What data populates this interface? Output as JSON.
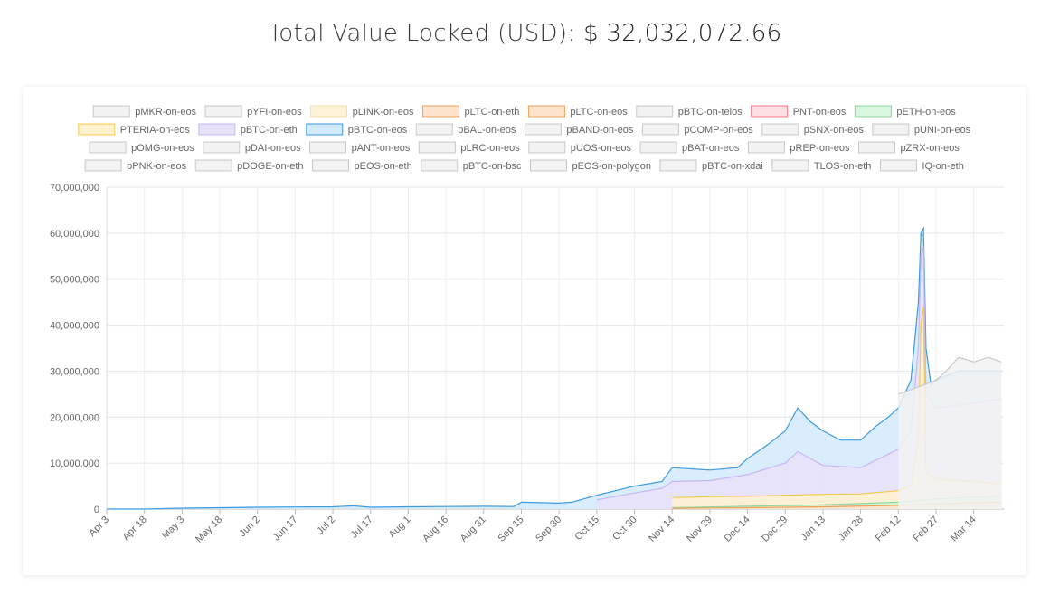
{
  "header": {
    "title_prefix": "Total Value Locked (USD):",
    "total_value": "$ 32,032,072.66"
  },
  "chart_data": {
    "type": "area",
    "stacked": true,
    "grid": true,
    "legend_position": "top",
    "ylim": [
      0,
      70000000
    ],
    "yticks": [
      "0",
      "10,000,000",
      "20,000,000",
      "30,000,000",
      "40,000,000",
      "50,000,000",
      "60,000,000",
      "70,000,000"
    ],
    "xticks": [
      "Apr 3",
      "Apr 18",
      "May 3",
      "May 18",
      "Jun 2",
      "Jun 17",
      "Jul 2",
      "Jul 17",
      "Aug 1",
      "Aug 16",
      "Aug 31",
      "Sep 15",
      "Sep 30",
      "Oct 15",
      "Oct 30",
      "Nov 14",
      "Nov 29",
      "Dec 14",
      "Dec 29",
      "Jan 13",
      "Jan 28",
      "Feb 12",
      "Feb 27",
      "Mar 14"
    ],
    "legend": [
      {
        "name": "pMKR-on-eos",
        "fill": "#f2f2f2",
        "stroke": "#c8c8c8"
      },
      {
        "name": "pYFI-on-eos",
        "fill": "#f2f2f2",
        "stroke": "#c8c8c8"
      },
      {
        "name": "pLINK-on-eos",
        "fill": "#fdf3d8",
        "stroke": "#f2dfae"
      },
      {
        "name": "pLTC-on-eth",
        "fill": "#fde3cc",
        "stroke": "#f0a05a"
      },
      {
        "name": "pLTC-on-eos",
        "fill": "#fde3cc",
        "stroke": "#f0a05a"
      },
      {
        "name": "pBTC-on-telos",
        "fill": "#f2f2f2",
        "stroke": "#c8c8c8"
      },
      {
        "name": "PNT-on-eos",
        "fill": "#fde0e3",
        "stroke": "#f07a85"
      },
      {
        "name": "pETH-on-eos",
        "fill": "#d8f5dd",
        "stroke": "#8fd89d"
      },
      {
        "name": "PTERIA-on-eos",
        "fill": "#fff3cf",
        "stroke": "#f5c84c"
      },
      {
        "name": "pBTC-on-eth",
        "fill": "#e7e0f9",
        "stroke": "#c7b6f0"
      },
      {
        "name": "pBTC-on-eos",
        "fill": "#d2eafc",
        "stroke": "#3b9ae1"
      },
      {
        "name": "pBAL-on-eos",
        "fill": "#f2f2f2",
        "stroke": "#c8c8c8"
      },
      {
        "name": "pBAND-on-eos",
        "fill": "#f2f2f2",
        "stroke": "#c8c8c8"
      },
      {
        "name": "pCOMP-on-eos",
        "fill": "#f2f2f2",
        "stroke": "#c8c8c8"
      },
      {
        "name": "pSNX-on-eos",
        "fill": "#f2f2f2",
        "stroke": "#c8c8c8"
      },
      {
        "name": "pUNI-on-eos",
        "fill": "#f2f2f2",
        "stroke": "#c8c8c8"
      },
      {
        "name": "pOMG-on-eos",
        "fill": "#f2f2f2",
        "stroke": "#c8c8c8"
      },
      {
        "name": "pDAI-on-eos",
        "fill": "#f2f2f2",
        "stroke": "#c8c8c8"
      },
      {
        "name": "pANT-on-eos",
        "fill": "#f2f2f2",
        "stroke": "#c8c8c8"
      },
      {
        "name": "pLRC-on-eos",
        "fill": "#f2f2f2",
        "stroke": "#c8c8c8"
      },
      {
        "name": "pUOS-on-eos",
        "fill": "#f2f2f2",
        "stroke": "#c8c8c8"
      },
      {
        "name": "pBAT-on-eos",
        "fill": "#f2f2f2",
        "stroke": "#c8c8c8"
      },
      {
        "name": "pREP-on-eos",
        "fill": "#f2f2f2",
        "stroke": "#c8c8c8"
      },
      {
        "name": "pZRX-on-eos",
        "fill": "#f2f2f2",
        "stroke": "#c8c8c8"
      },
      {
        "name": "pPNK-on-eos",
        "fill": "#f2f2f2",
        "stroke": "#c8c8c8"
      },
      {
        "name": "pDOGE-on-eth",
        "fill": "#f2f2f2",
        "stroke": "#c8c8c8"
      },
      {
        "name": "pEOS-on-eth",
        "fill": "#f2f2f2",
        "stroke": "#c8c8c8"
      },
      {
        "name": "pBTC-on-bsc",
        "fill": "#f2f2f2",
        "stroke": "#c8c8c8"
      },
      {
        "name": "pEOS-on-polygon",
        "fill": "#f2f2f2",
        "stroke": "#c8c8c8"
      },
      {
        "name": "pBTC-on-xdai",
        "fill": "#f2f2f2",
        "stroke": "#c8c8c8"
      },
      {
        "name": "TLOS-on-eth",
        "fill": "#f2f2f2",
        "stroke": "#c8c8c8"
      },
      {
        "name": "IQ-on-eth",
        "fill": "#f2f2f2",
        "stroke": "#c8c8c8"
      }
    ],
    "series": [
      {
        "name": "pBTC-on-eos",
        "fill": "#d2eafc",
        "stroke": "#3b9ae1",
        "x": [
          "Apr 3",
          "Apr 18",
          "May 3",
          "May 18",
          "Jun 2",
          "Jun 17",
          "Jul 2",
          "Jul 10",
          "Jul 17",
          "Aug 1",
          "Aug 16",
          "Aug 31",
          "Sep 12",
          "Sep 15",
          "Sep 30",
          "Oct 5",
          "Oct 15",
          "Oct 30",
          "Nov 10",
          "Nov 14",
          "Nov 29",
          "Dec 10",
          "Dec 14",
          "Dec 22",
          "Dec 29",
          "Jan 3",
          "Jan 8",
          "Jan 13",
          "Jan 20",
          "Jan 28",
          "Feb 3",
          "Feb 8",
          "Feb 12",
          "Feb 17",
          "Feb 20",
          "Feb 21",
          "Feb 22",
          "Feb 23",
          "Feb 25",
          "Feb 27",
          "Mar 3",
          "Mar 8",
          "Mar 14",
          "Mar 22",
          "Mar 25"
        ],
        "values": [
          0,
          0,
          200000,
          300000,
          400000,
          450000,
          500000,
          700000,
          400000,
          500000,
          550000,
          600000,
          550000,
          1500000,
          1300000,
          1500000,
          3000000,
          5000000,
          6000000,
          9000000,
          8500000,
          9000000,
          11000000,
          14000000,
          17000000,
          22000000,
          19000000,
          17000000,
          15000000,
          15000000,
          18000000,
          20000000,
          22000000,
          28000000,
          45000000,
          60000000,
          61000000,
          35000000,
          27000000,
          28000000,
          29000000,
          30000000,
          30000000,
          30000000,
          30000000
        ]
      },
      {
        "name": "pBTC-on-eth",
        "fill": "#e7e0f9",
        "stroke": "#c7b6f0",
        "x": [
          "Oct 15",
          "Oct 30",
          "Nov 10",
          "Nov 14",
          "Nov 29",
          "Dec 14",
          "Dec 29",
          "Jan 3",
          "Jan 13",
          "Jan 28",
          "Feb 12",
          "Feb 17",
          "Feb 20",
          "Feb 21",
          "Feb 22",
          "Feb 23",
          "Feb 27",
          "Mar 14",
          "Mar 25"
        ],
        "values": [
          2000000,
          3500000,
          4500000,
          6000000,
          6200000,
          7500000,
          10000000,
          12500000,
          9500000,
          9000000,
          13000000,
          17000000,
          35000000,
          55000000,
          57000000,
          25000000,
          22000000,
          23000000,
          24000000
        ]
      },
      {
        "name": "PTERIA-on-eos",
        "fill": "#fff3cf",
        "stroke": "#f5c84c",
        "x": [
          "Nov 14",
          "Nov 29",
          "Dec 14",
          "Dec 29",
          "Jan 13",
          "Jan 28",
          "Feb 12",
          "Feb 17",
          "Feb 20",
          "Feb 21",
          "Feb 22",
          "Feb 23",
          "Feb 27",
          "Mar 14",
          "Mar 25"
        ],
        "values": [
          2500000,
          2700000,
          2800000,
          3000000,
          3200000,
          3300000,
          4000000,
          5000000,
          15000000,
          40000000,
          44000000,
          8000000,
          6500000,
          6000000,
          5500000
        ]
      },
      {
        "name": "pETH-on-eos",
        "fill": "#d8f5dd",
        "stroke": "#8fd89d",
        "x": [
          "Nov 14",
          "Dec 14",
          "Jan 13",
          "Feb 12",
          "Feb 27",
          "Mar 14",
          "Mar 25"
        ],
        "values": [
          300000,
          600000,
          900000,
          1500000,
          2200000,
          2600000,
          2800000
        ]
      },
      {
        "name": "pLTC-on-eos",
        "fill": "#fde3cc",
        "stroke": "#f0a05a",
        "x": [
          "Nov 14",
          "Dec 14",
          "Jan 13",
          "Feb 12",
          "Feb 27",
          "Mar 14",
          "Mar 25"
        ],
        "values": [
          150000,
          300000,
          500000,
          800000,
          1100000,
          1400000,
          1500000
        ]
      },
      {
        "name": "pMKR-on-eos",
        "fill": "#f2f2f2",
        "stroke": "#c8c8c8",
        "x": [
          "Feb 12",
          "Feb 27",
          "Mar 3",
          "Mar 8",
          "Mar 14",
          "Mar 20",
          "Mar 25"
        ],
        "values": [
          25000000,
          28000000,
          30000000,
          33000000,
          32000000,
          33000000,
          32000000
        ]
      }
    ]
  }
}
